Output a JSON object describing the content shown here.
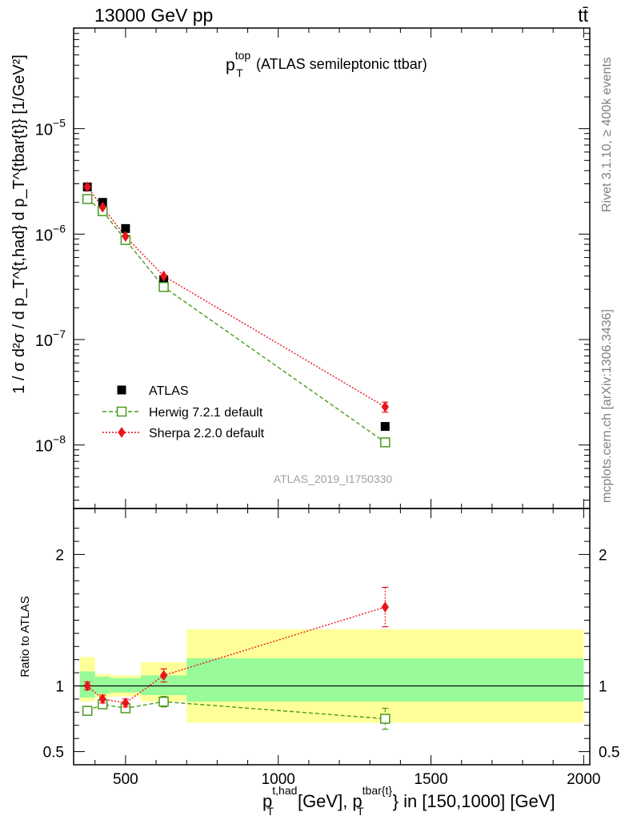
{
  "header": {
    "left": "13000 GeV pp",
    "right": "tt̄"
  },
  "side_labels": {
    "rivet": "Rivet 3.1.10, ≥ 400k events",
    "mcplots": "mcplots.cern.ch [arXiv:1306.3436]"
  },
  "watermark": "ATLAS_2019_I1750330",
  "chart_data": [
    {
      "type": "scatter",
      "panel": "main",
      "title_main": "p",
      "title_sub": "T",
      "title_sup": "top",
      "title_rest": "(ATLAS semileptonic ttbar)",
      "ylabel": "1 / σ d²σ / d p_T^{t,had} d p_T^{tbar{t}} [1/GeV²]",
      "yscale": "log",
      "ylim": [
        2.5e-09,
        9e-05
      ],
      "xlim": [
        330,
        2020
      ],
      "y_ticks": [
        {
          "value": 1e-08,
          "base": "10",
          "exp": "−8"
        },
        {
          "value": 1e-07,
          "base": "10",
          "exp": "−7"
        },
        {
          "value": 1e-06,
          "base": "10",
          "exp": "−6"
        },
        {
          "value": 1e-05,
          "base": "10",
          "exp": "−5"
        }
      ],
      "legend_position": "bottom-left",
      "series": [
        {
          "name": "ATLAS",
          "style": "data",
          "color": "#000000",
          "x": [
            375,
            425,
            500,
            625,
            1350
          ],
          "y": [
            2.8e-06,
            2e-06,
            1.13e-06,
            3.7e-07,
            1.5e-08
          ],
          "yerr": [
            0,
            0,
            0,
            0,
            0
          ]
        },
        {
          "name": "Herwig 7.2.1 default",
          "style": "open-square-dashed",
          "color": "#4a9a1e",
          "x": [
            375,
            425,
            500,
            625,
            1350
          ],
          "y": [
            2.15e-06,
            1.65e-06,
            8.8e-07,
            3.15e-07,
            1.06e-08
          ],
          "yerr": [
            0,
            0,
            0,
            0,
            5e-10
          ]
        },
        {
          "name": "Sherpa 2.2.0 default",
          "style": "filled-diamond-dotted",
          "color": "#e8141c",
          "x": [
            375,
            425,
            500,
            625,
            1350
          ],
          "y": [
            2.8e-06,
            1.8e-06,
            9.5e-07,
            4e-07,
            2.3e-08
          ],
          "yerr": [
            0,
            0,
            0,
            0,
            2.5e-09
          ]
        }
      ]
    },
    {
      "type": "scatter",
      "panel": "ratio",
      "ylabel": "Ratio to ATLAS",
      "ylim": [
        0.4,
        2.35
      ],
      "xlim": [
        330,
        2020
      ],
      "xlabel_main": "p",
      "xlabel_sub1": "T",
      "xlabel_sup1": "t,had",
      "xlabel_mid": "[GeV], p",
      "xlabel_sub2": "T",
      "xlabel_sup2": "tbar{t}",
      "xlabel_rest": "} in [150,1000] [GeV]",
      "x_ticks": [
        500,
        1000,
        1500,
        2000
      ],
      "x_tick_labels": [
        "500",
        "1000",
        "1500",
        "2000"
      ],
      "y_ticks": [
        0.5,
        1,
        2
      ],
      "y_tick_labels": [
        "0.5",
        "1",
        "2"
      ],
      "bands": {
        "bins": [
          [
            350,
            400
          ],
          [
            400,
            450
          ],
          [
            450,
            550
          ],
          [
            550,
            700
          ],
          [
            700,
            2000
          ]
        ],
        "inner": [
          [
            0.91,
            1.11
          ],
          [
            0.94,
            1.07
          ],
          [
            0.95,
            1.06
          ],
          [
            0.93,
            1.08
          ],
          [
            0.88,
            1.21
          ]
        ],
        "outer": [
          [
            0.88,
            1.22
          ],
          [
            0.91,
            1.09
          ],
          [
            0.92,
            1.08
          ],
          [
            0.88,
            1.18
          ],
          [
            0.72,
            1.43
          ]
        ],
        "inner_color": "#98fa98",
        "outer_color": "#ffff9a"
      },
      "series": [
        {
          "name": "Herwig 7.2.1 default",
          "style": "open-square-dashed",
          "color": "#4a9a1e",
          "x": [
            375,
            425,
            500,
            625,
            1350
          ],
          "y": [
            0.81,
            0.86,
            0.83,
            0.88,
            0.75
          ],
          "yerr": [
            0.03,
            0.03,
            0.03,
            0.04,
            0.08
          ]
        },
        {
          "name": "Sherpa 2.2.0 default",
          "style": "filled-diamond-dotted",
          "color": "#e8141c",
          "x": [
            375,
            425,
            500,
            625,
            1350
          ],
          "y": [
            1.0,
            0.9,
            0.87,
            1.08,
            1.6
          ],
          "yerr": [
            0.03,
            0.03,
            0.03,
            0.05,
            0.15
          ]
        }
      ]
    }
  ]
}
